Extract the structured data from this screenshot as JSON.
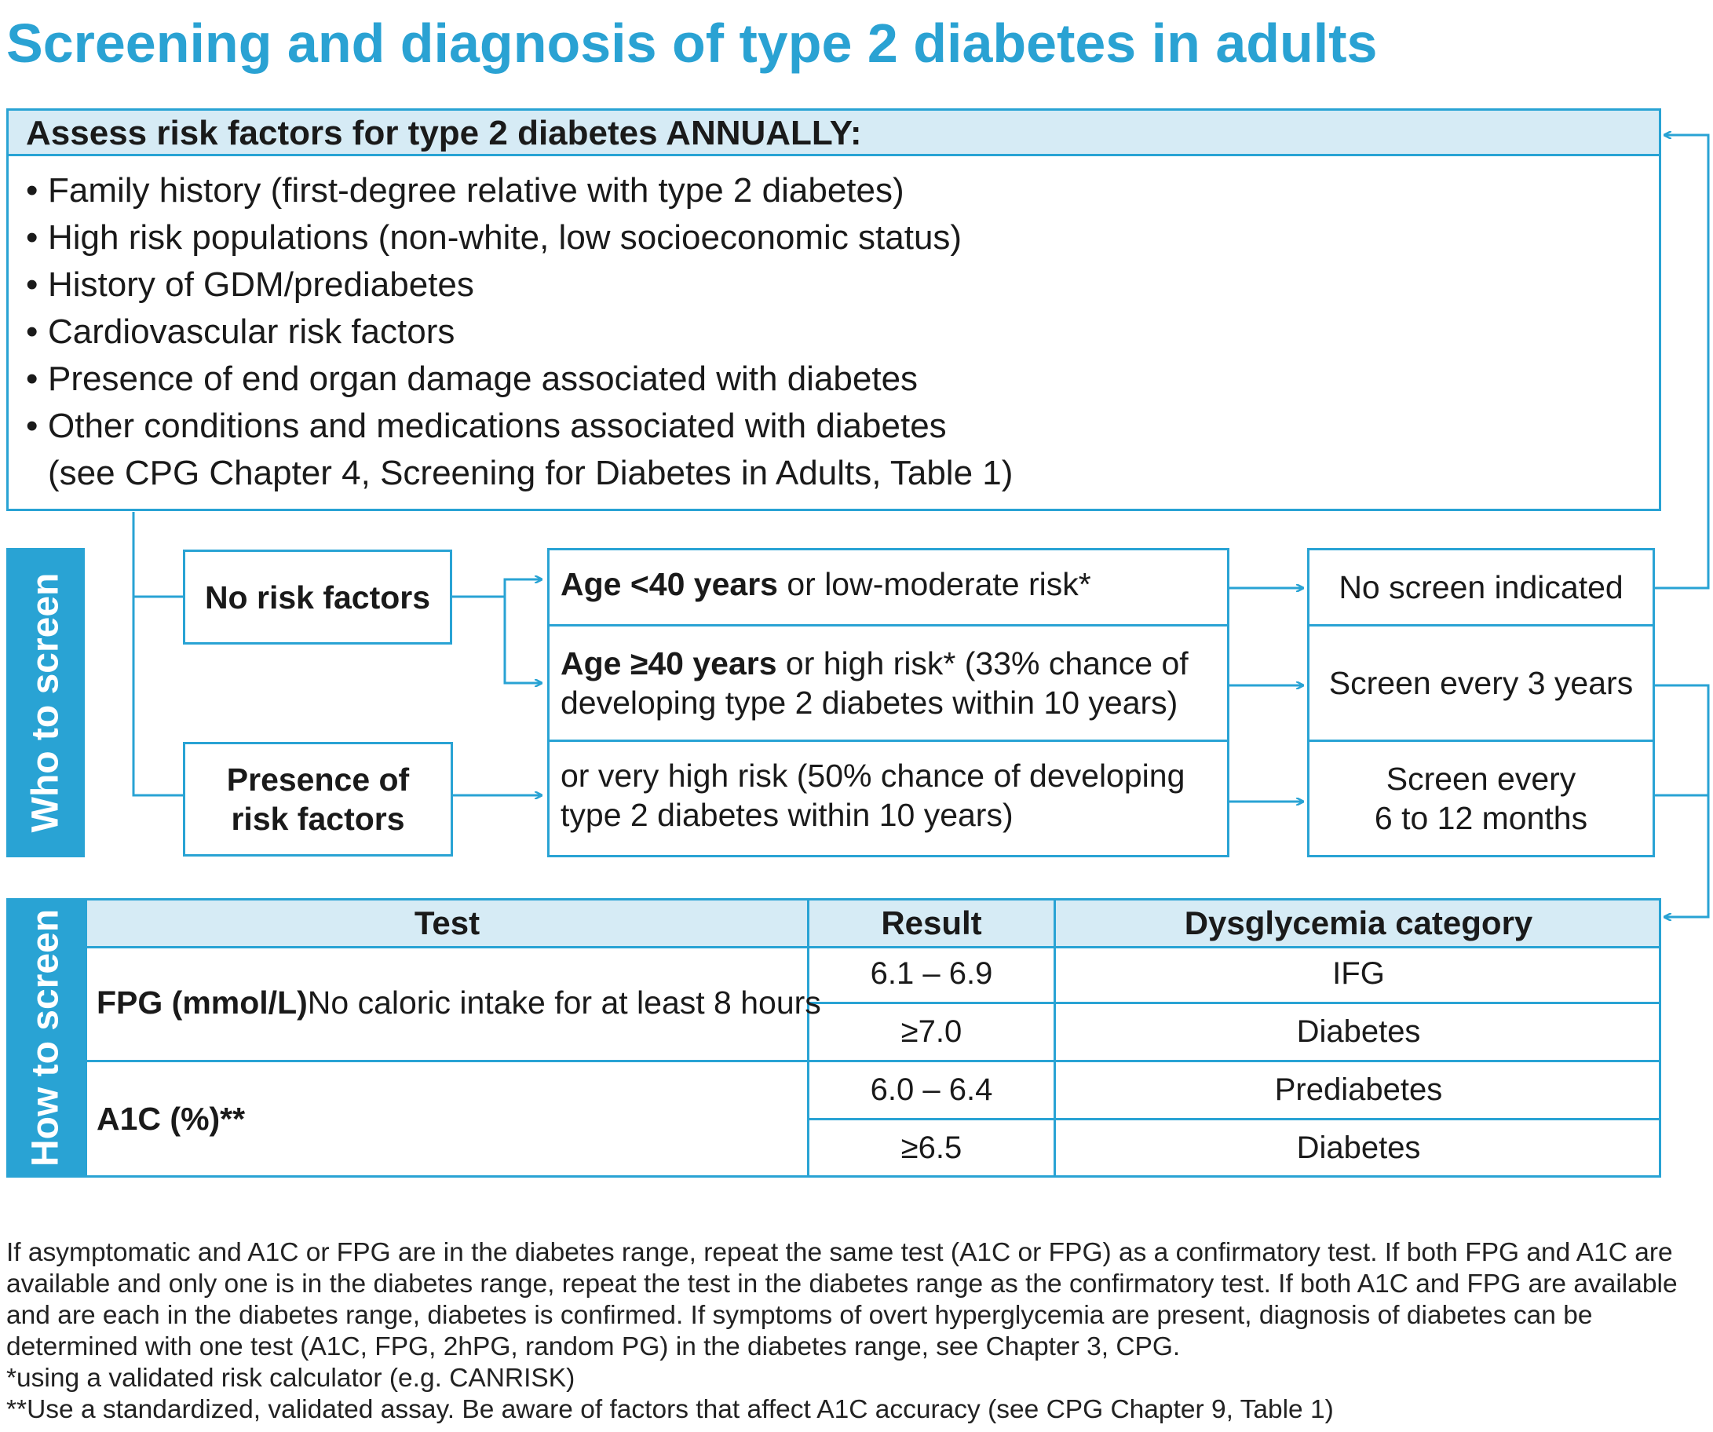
{
  "title": "Screening and diagnosis of type 2 diabetes in adults",
  "assess": {
    "header": "Assess risk factors for type 2 diabetes ANNUALLY:",
    "bullet": "•",
    "items": [
      "Family history (first-degree relative with type 2 diabetes)",
      "High risk populations (non-white, low socioeconomic status)",
      "History of GDM/prediabetes",
      "Cardiovascular risk factors",
      "Presence of end organ damage associated with diabetes",
      "Other conditions and medications associated with diabetes"
    ],
    "continuation": "(see CPG Chapter 4, Screening for Diabetes in Adults, Table 1)"
  },
  "who": {
    "label": "Who to screen",
    "no_risk": "No risk factors",
    "presence_line1": "Presence of",
    "presence_line2": "risk factors",
    "age_lt40_bold": "Age <40 years",
    "age_lt40_rest": " or low-moderate risk*",
    "age_ge40_bold": "Age ≥40 years",
    "age_ge40_rest": " or high risk* (33% chance of",
    "age_ge40_line2": "developing type 2 diabetes within 10 years)",
    "very_high_line1": "or very high risk (50% chance of developing",
    "very_high_line2": "type 2 diabetes within 10 years)",
    "no_screen": "No screen indicated",
    "every3": "Screen every 3 years",
    "every6_line1": "Screen every",
    "every6_line2": "6 to 12 months"
  },
  "how": {
    "label": "How to screen",
    "headers": {
      "test": "Test",
      "result": "Result",
      "category": "Dysglycemia category"
    },
    "fpg_bold": "FPG (mmol/L)",
    "fpg_rest": " No caloric intake for at least 8 hours",
    "a1c": "A1C (%)**",
    "rows": [
      {
        "result": "6.1 – 6.9",
        "category": "IFG"
      },
      {
        "result": "≥7.0",
        "category": "Diabetes"
      },
      {
        "result": "6.0 – 6.4",
        "category": "Prediabetes"
      },
      {
        "result": "≥6.5",
        "category": "Diabetes"
      }
    ]
  },
  "footnotes": {
    "main": "If asymptomatic and A1C or FPG are in the diabetes range, repeat the same test (A1C or FPG) as a confirmatory test. If both FPG and A1C are available and only one is in the diabetes range, repeat the test in the diabetes range as the confirmatory test. If both A1C and FPG are available and are each in the diabetes range, diabetes is confirmed. If symptoms of overt hyperglycemia are present, diagnosis of diabetes can be determined with one test (A1C, FPG, 2hPG, random PG) in the diabetes range, see Chapter 3, CPG.",
    "star": "*using a validated risk calculator (e.g. CANRISK)",
    "double_star": "**Use a standardized, validated assay. Be aware of factors that affect A1C accuracy (see CPG Chapter 9, Table 1)"
  }
}
